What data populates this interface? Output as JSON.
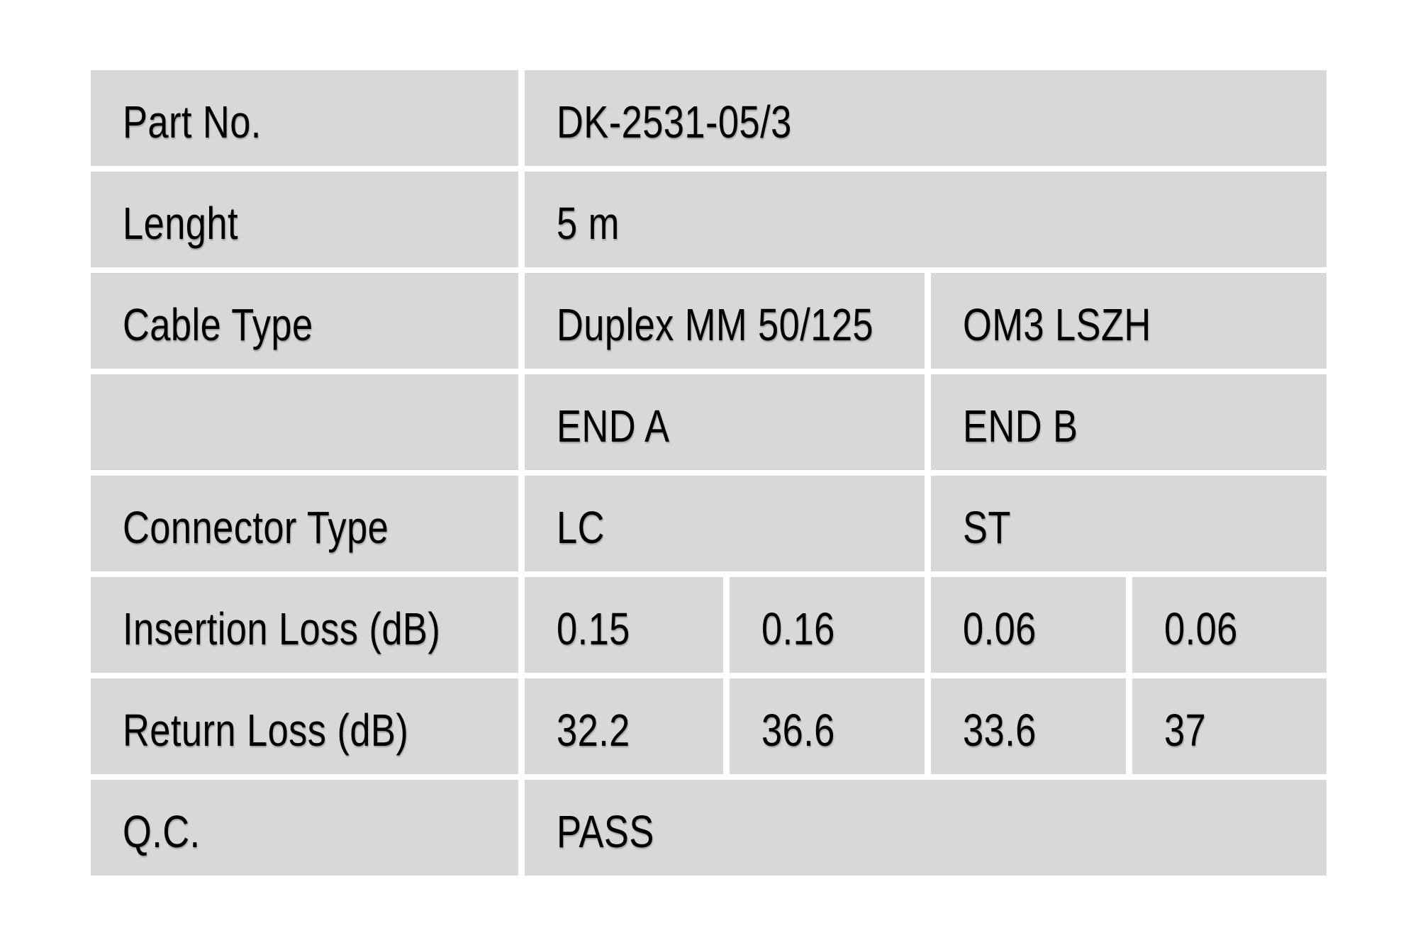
{
  "colors": {
    "page_bg": "#ffffff",
    "cell_bg": "#d8d8d8",
    "text": "#000000"
  },
  "table": {
    "rows": [
      {
        "label": "Part No.",
        "values": [
          {
            "text": "DK-2531-05/3",
            "span": 4
          }
        ]
      },
      {
        "label": "Lenght",
        "values": [
          {
            "text": "5 m",
            "span": 4
          }
        ]
      },
      {
        "label": "Cable Type",
        "values": [
          {
            "text": "Duplex MM 50/125",
            "span": 2
          },
          {
            "text": "OM3 LSZH",
            "span": 2
          }
        ]
      },
      {
        "label": "",
        "values": [
          {
            "text": "END A",
            "span": 2
          },
          {
            "text": "END B",
            "span": 2
          }
        ]
      },
      {
        "label": "Connector Type",
        "values": [
          {
            "text": "LC",
            "span": 2
          },
          {
            "text": "ST",
            "span": 2
          }
        ]
      },
      {
        "label": "Insertion Loss (dB)",
        "values": [
          {
            "text": "0.15",
            "span": 1
          },
          {
            "text": "0.16",
            "span": 1
          },
          {
            "text": "0.06",
            "span": 1
          },
          {
            "text": "0.06",
            "span": 1
          }
        ]
      },
      {
        "label": "Return Loss (dB)",
        "values": [
          {
            "text": "32.2",
            "span": 1
          },
          {
            "text": "36.6",
            "span": 1
          },
          {
            "text": "33.6",
            "span": 1
          },
          {
            "text": "37",
            "span": 1
          }
        ]
      },
      {
        "label": "Q.C.",
        "values": [
          {
            "text": "PASS",
            "span": 4
          }
        ]
      }
    ]
  }
}
